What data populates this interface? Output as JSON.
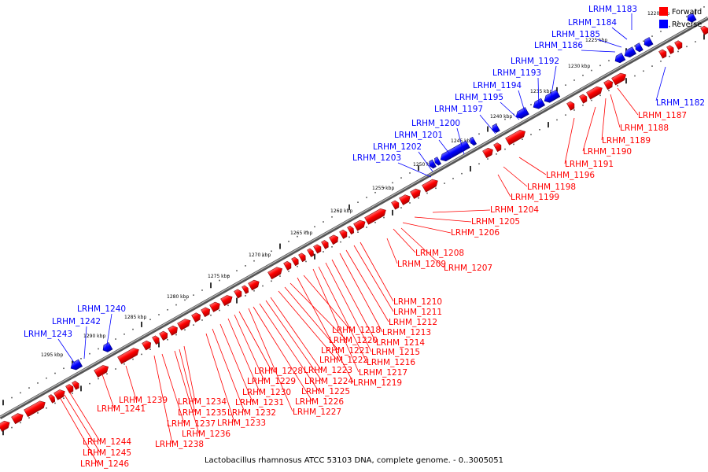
{
  "caption": "Lactobacillus rhamnosus ATCC 53103 DNA, complete genome. - 0..3005051",
  "legend": [
    {
      "label": "Forward",
      "color": "#ff0000"
    },
    {
      "label": "Reverse",
      "color": "#0000ff"
    }
  ],
  "ticks": [
    "1220 kbp",
    "1225 kbp",
    "1230 kbp",
    "1235 kbp",
    "1240 kbp",
    "1245 kbp",
    "1250 kbp",
    "1255 kbp",
    "1260 kbp",
    "1265 kbp",
    "1270 kbp",
    "1275 kbp",
    "1280 kbp",
    "1285 kbp",
    "1290 kbp",
    "1295 kbp"
  ],
  "reverse_genes": [
    "LRHM_1182",
    "LRHM_1183",
    "LRHM_1184",
    "LRHM_1185",
    "LRHM_1186",
    "LRHM_1192",
    "LRHM_1193",
    "LRHM_1194",
    "LRHM_1195",
    "LRHM_1197",
    "LRHM_1200",
    "LRHM_1201",
    "LRHM_1202",
    "LRHM_1203",
    "LRHM_1240",
    "LRHM_1242",
    "LRHM_1243"
  ],
  "forward_genes": [
    "LRHM_1187",
    "LRHM_1188",
    "LRHM_1189",
    "LRHM_1190",
    "LRHM_1191",
    "LRHM_1196",
    "LRHM_1198",
    "LRHM_1199",
    "LRHM_1204",
    "LRHM_1205",
    "LRHM_1206",
    "LRHM_1207",
    "LRHM_1208",
    "LRHM_1209",
    "LRHM_1210",
    "LRHM_1211",
    "LRHM_1212",
    "LRHM_1213",
    "LRHM_1214",
    "LRHM_1215",
    "LRHM_1216",
    "LRHM_1217",
    "LRHM_1218",
    "LRHM_1219",
    "LRHM_1220",
    "LRHM_1221",
    "LRHM_1222",
    "LRHM_1223",
    "LRHM_1224",
    "LRHM_1225",
    "LRHM_1226",
    "LRHM_1227",
    "LRHM_1228",
    "LRHM_1229",
    "LRHM_1230",
    "LRHM_1231",
    "LRHM_1232",
    "LRHM_1233",
    "LRHM_1234",
    "LRHM_1235",
    "LRHM_1236",
    "LRHM_1237",
    "LRHM_1238",
    "LRHM_1239",
    "LRHM_1241",
    "LRHM_1244",
    "LRHM_1245",
    "LRHM_1246"
  ]
}
